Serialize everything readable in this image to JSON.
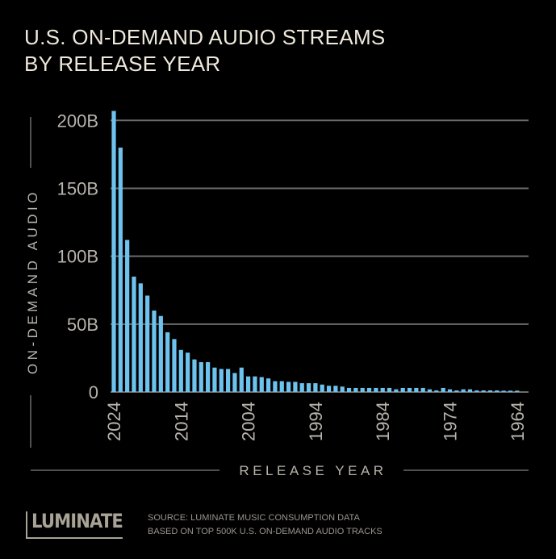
{
  "title_lines": [
    "U.S. ON-DEMAND AUDIO STREAMS",
    "BY RELEASE YEAR"
  ],
  "footer": {
    "logo_text": "LUMINATE",
    "source_lines": [
      "SOURCE: LUMINATE MUSIC CONSUMPTION DATA",
      "BASED ON TOP 500K U.S. ON-DEMAND AUDIO TRACKS"
    ]
  },
  "colors": {
    "bar": "#6ec3ee",
    "background": "#000000",
    "grid": "#6b6b6b",
    "text": "#efe9dc",
    "axis_text": "#b8b4ac"
  },
  "chart_data": {
    "type": "bar",
    "title": "U.S. ON-DEMAND AUDIO STREAMS BY RELEASE YEAR",
    "xlabel": "RELEASE YEAR",
    "ylabel": "ON-DEMAND AUDIO",
    "ylim": [
      0,
      200
    ],
    "unit": "B",
    "grid": true,
    "yticks": [
      0,
      50,
      100,
      150,
      200
    ],
    "ytick_labels": [
      "0",
      "50B",
      "100B",
      "150B",
      "200B"
    ],
    "xtick_labels": [
      "2024",
      "2014",
      "2004",
      "1994",
      "1984",
      "1974",
      "1964"
    ],
    "categories_range": [
      2024,
      1964
    ],
    "values": [
      207,
      180,
      112,
      85,
      80,
      71,
      60,
      56,
      44,
      39,
      31,
      29,
      24,
      22,
      22,
      18,
      17,
      17,
      14,
      18,
      11.5,
      11.5,
      11,
      10,
      8,
      8,
      7.5,
      7.5,
      6.5,
      6.5,
      6.5,
      5.5,
      4.6,
      4.6,
      4,
      3,
      3,
      3,
      3,
      3,
      3,
      3,
      2,
      3,
      3,
      3,
      3,
      2,
      1.2,
      3,
      2,
      1.2,
      2,
      2,
      1.2,
      1.2,
      1.2,
      1.2,
      1,
      1,
      1
    ]
  }
}
